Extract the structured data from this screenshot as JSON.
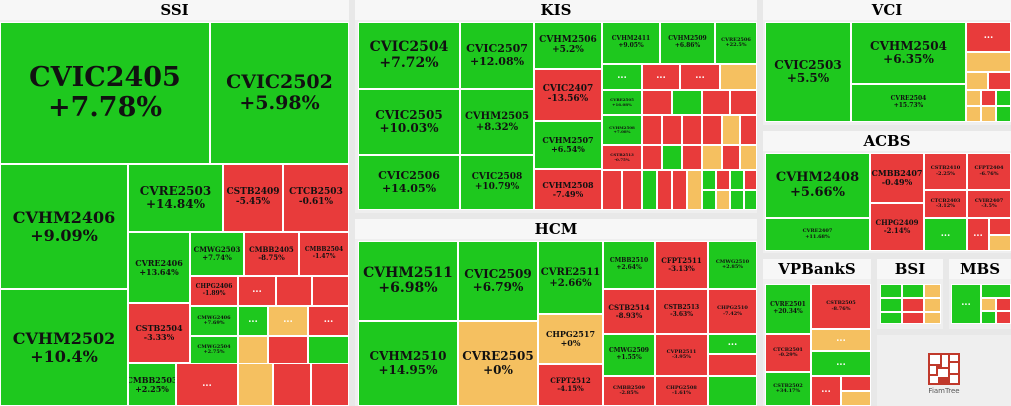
{
  "colors": {
    "up": "#1ec81e",
    "down": "#e83b3b",
    "flat": "#f5c060"
  },
  "panels": {
    "ssi": {
      "title": "SSI"
    },
    "kis": {
      "title": "KIS"
    },
    "vci": {
      "title": "VCI"
    },
    "hcm": {
      "title": "HCM"
    },
    "acbs": {
      "title": "ACBS"
    },
    "vpbanks": {
      "title": "VPBankS"
    },
    "bsi": {
      "title": "BSI"
    },
    "mbs": {
      "title": "MBS"
    }
  },
  "more": "...",
  "ssi_tiles": [
    {
      "code": "CVIC2405",
      "chg": "+7.78%"
    },
    {
      "code": "CVIC2502",
      "chg": "+5.98%"
    },
    {
      "code": "CVHM2406",
      "chg": "+9.09%"
    },
    {
      "code": "CVRE2503",
      "chg": "+14.84%"
    },
    {
      "code": "CSTB2409",
      "chg": "-5.45%"
    },
    {
      "code": "CTCB2503",
      "chg": "-0.61%"
    },
    {
      "code": "CVRE2406",
      "chg": "+13.64%"
    },
    {
      "code": "CMWG2503",
      "chg": "+7.74%"
    },
    {
      "code": "CMBB2405",
      "chg": "-8.75%"
    },
    {
      "code": "CMBB2504",
      "chg": "-1.47%"
    },
    {
      "code": "CHPG2406",
      "chg": "-1.89%"
    },
    {
      "code": "CVHM2502",
      "chg": "+10.4%"
    },
    {
      "code": "CSTB2504",
      "chg": "-3.33%"
    },
    {
      "code": "CMWG2406",
      "chg": "+7.69%"
    },
    {
      "code": "CMWG2504",
      "chg": "+2.75%"
    },
    {
      "code": "CMBB2503",
      "chg": "+2.25%"
    }
  ],
  "kis_tiles": [
    {
      "code": "CVIC2504",
      "chg": "+7.72%"
    },
    {
      "code": "CVIC2507",
      "chg": "+12.08%"
    },
    {
      "code": "CVHM2506",
      "chg": "+5.2%"
    },
    {
      "code": "CVHM2411",
      "chg": "+9.05%"
    },
    {
      "code": "CVHM2509",
      "chg": "+6.86%"
    },
    {
      "code": "CVRE2506",
      "chg": "+22.5%"
    },
    {
      "code": "CVIC2407",
      "chg": "-13.56%"
    },
    {
      "code": "CVRE2505",
      "chg": "+16.08%"
    },
    {
      "code": "CVIC2505",
      "chg": "+10.03%"
    },
    {
      "code": "CVHM2505",
      "chg": "+8.32%"
    },
    {
      "code": "CVHM2507",
      "chg": "+6.54%"
    },
    {
      "code": "CVHM2508",
      "chg": "+7.08%"
    },
    {
      "code": "CSTB2513",
      "chg": "-0.75%"
    },
    {
      "code": "CVIC2506",
      "chg": "+14.05%"
    },
    {
      "code": "CVIC2508",
      "chg": "+10.79%"
    },
    {
      "code": "CVHM2508",
      "chg": "-7.49%"
    }
  ],
  "vci_tiles": [
    {
      "code": "CVIC2503",
      "chg": "+5.5%"
    },
    {
      "code": "CVHM2504",
      "chg": "+6.35%"
    },
    {
      "code": "CVRE2504",
      "chg": "+15.73%"
    }
  ],
  "hcm_tiles": [
    {
      "code": "CVHM2511",
      "chg": "+6.98%"
    },
    {
      "code": "CVIC2509",
      "chg": "+6.79%"
    },
    {
      "code": "CVRE2511",
      "chg": "+2.66%"
    },
    {
      "code": "CMBB2510",
      "chg": "+2.64%"
    },
    {
      "code": "CFPT2511",
      "chg": "-3.13%"
    },
    {
      "code": "CMWG2510",
      "chg": "+2.85%"
    },
    {
      "code": "CSTB2514",
      "chg": "-8.93%"
    },
    {
      "code": "CSTB2513",
      "chg": "-3.63%"
    },
    {
      "code": "CHPG2510",
      "chg": "-7.42%"
    },
    {
      "code": "CHPG2517",
      "chg": "+0%"
    },
    {
      "code": "CMWG2509",
      "chg": "+1.55%"
    },
    {
      "code": "CVPB2511",
      "chg": "-3.95%"
    },
    {
      "code": "CVHM2510",
      "chg": "+14.95%"
    },
    {
      "code": "CVRE2505",
      "chg": "+0%"
    },
    {
      "code": "CFPT2512",
      "chg": "-4.15%"
    },
    {
      "code": "CMBB2509",
      "chg": "-2.85%"
    },
    {
      "code": "CHPG2508",
      "chg": "-1.61%"
    }
  ],
  "acbs_tiles": [
    {
      "code": "CVHM2408",
      "chg": "+5.66%"
    },
    {
      "code": "CMBB2407",
      "chg": "-0.49%"
    },
    {
      "code": "CSTB2410",
      "chg": "-2.25%"
    },
    {
      "code": "CFPT2404",
      "chg": "-6.76%"
    },
    {
      "code": "CTCB2403",
      "chg": "-3.12%"
    },
    {
      "code": "CVIB2407",
      "chg": "-3.5%"
    },
    {
      "code": "CHPG2409",
      "chg": "-2.14%"
    },
    {
      "code": "CVRE2407",
      "chg": "+11.68%"
    }
  ],
  "vpbanks_tiles": [
    {
      "code": "CVRE2501",
      "chg": "+20.34%"
    },
    {
      "code": "CSTB2505",
      "chg": "-8.76%"
    },
    {
      "code": "CTCB2501",
      "chg": "-0.29%"
    },
    {
      "code": "CSTB2502",
      "chg": "+34.17%"
    }
  ],
  "logo_text": "FiamTree"
}
